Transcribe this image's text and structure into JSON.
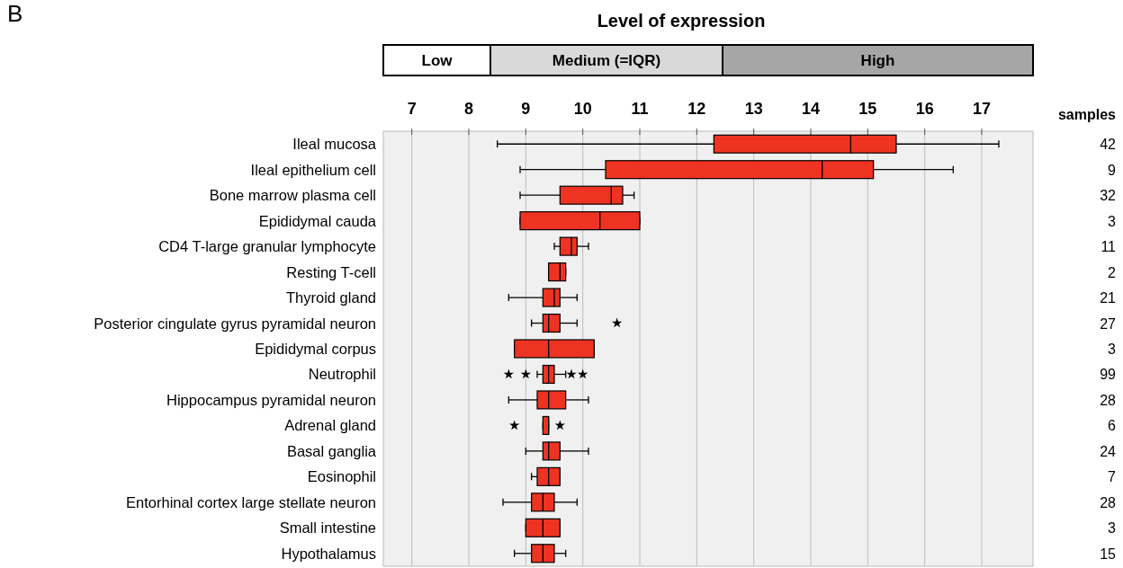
{
  "chart_data": {
    "type": "box",
    "title": "Level of expression",
    "orientation": "horizontal",
    "color": "#ee3322",
    "marker": "star",
    "grid": "x",
    "categories": [
      "Ileal mucosa",
      "Ileal epithelium cell",
      "Bone marrow plasma cell",
      "Epididymal cauda",
      "CD4 T-large granular lymphocyte",
      "Resting T-cell",
      "Thyroid gland",
      "Posterior cingulate gyrus pyramidal neuron",
      "Epididymal corpus",
      "Neutrophil",
      "Hippocampus pyramidal neuron",
      "Adrenal gland",
      "Basal ganglia",
      "Eosinophil",
      "Entorhinal cortex large stellate neuron",
      "Small intestine",
      "Hypothalamus"
    ],
    "boxes": [
      {
        "low": 8.5,
        "q1": 12.3,
        "median": 14.7,
        "q3": 15.5,
        "high": 17.3
      },
      {
        "low": 8.9,
        "q1": 10.4,
        "median": 14.2,
        "q3": 15.1,
        "high": 16.5
      },
      {
        "low": 8.9,
        "q1": 9.6,
        "median": 10.5,
        "q3": 10.7,
        "high": 10.9
      },
      {
        "low": 8.9,
        "q1": 8.9,
        "median": 10.3,
        "q3": 11.0,
        "high": 11.0
      },
      {
        "low": 9.5,
        "q1": 9.6,
        "median": 9.8,
        "q3": 9.9,
        "high": 10.1
      },
      {
        "low": 9.4,
        "q1": 9.4,
        "median": 9.6,
        "q3": 9.7,
        "high": 9.7
      },
      {
        "low": 8.7,
        "q1": 9.3,
        "median": 9.5,
        "q3": 9.6,
        "high": 9.9
      },
      {
        "low": 9.1,
        "q1": 9.3,
        "median": 9.4,
        "q3": 9.6,
        "high": 9.9,
        "outliers": [
          10.6
        ]
      },
      {
        "low": 8.8,
        "q1": 8.8,
        "median": 9.4,
        "q3": 10.2,
        "high": 10.2
      },
      {
        "low": 9.2,
        "q1": 9.3,
        "median": 9.4,
        "q3": 9.5,
        "high": 9.7,
        "outliers": [
          8.7,
          9.0,
          9.8,
          10.0
        ]
      },
      {
        "low": 8.7,
        "q1": 9.2,
        "median": 9.4,
        "q3": 9.7,
        "high": 10.1
      },
      {
        "low": 9.3,
        "q1": 9.3,
        "median": 9.4,
        "q3": 9.4,
        "high": 9.4,
        "outliers": [
          8.8,
          9.6
        ]
      },
      {
        "low": 9.0,
        "q1": 9.3,
        "median": 9.4,
        "q3": 9.6,
        "high": 10.1
      },
      {
        "low": 9.1,
        "q1": 9.2,
        "median": 9.4,
        "q3": 9.6,
        "high": 9.6
      },
      {
        "low": 8.6,
        "q1": 9.1,
        "median": 9.3,
        "q3": 9.5,
        "high": 9.9
      },
      {
        "low": 9.0,
        "q1": 9.0,
        "median": 9.3,
        "q3": 9.6,
        "high": 9.6
      },
      {
        "low": 8.8,
        "q1": 9.1,
        "median": 9.3,
        "q3": 9.5,
        "high": 9.7
      }
    ],
    "xlim": [
      6.5,
      17.9
    ],
    "xticks": [
      7,
      8,
      9,
      10,
      11,
      12,
      13,
      14,
      15,
      16,
      17
    ],
    "y2label": "samples",
    "annotations": [
      "B",
      "Low",
      "Medium (=IQR)",
      "High",
      "42",
      "9",
      "32",
      "3",
      "11",
      "2",
      "21",
      "27",
      "3",
      "99",
      "28",
      "6",
      "24",
      "7",
      "28",
      "3",
      "15"
    ]
  }
}
